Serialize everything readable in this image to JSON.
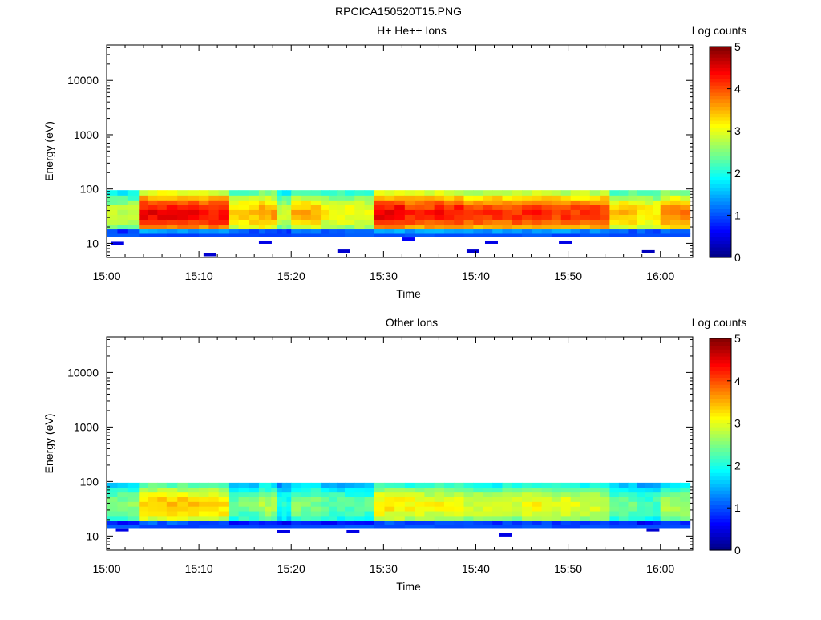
{
  "figure_title": "RPCICA150520T15.PNG",
  "chart_data": [
    {
      "type": "heatmap",
      "title": "H+ He++ Ions",
      "xlabel": "Time",
      "ylabel": "Energy (eV)",
      "xticks": [
        "15:00",
        "15:10",
        "15:20",
        "15:30",
        "15:40",
        "15:50",
        "16:00"
      ],
      "yticks": [
        "10",
        "100",
        "1000",
        "10000"
      ],
      "ylim": [
        5.5,
        45000
      ],
      "yscale": "log",
      "time_range": [
        "15:00",
        "16:03"
      ],
      "colorbar": {
        "label": "Log counts",
        "ticks": [
          "0",
          "1",
          "2",
          "3",
          "4",
          "5"
        ],
        "range": [
          0,
          5
        ],
        "colormap": "jet"
      },
      "energy_band_ev": [
        15,
        95
      ],
      "block_minutes": [
        0,
        3.5,
        6.5,
        10,
        13.2,
        16.5,
        18.5,
        20,
        23.2,
        25.8,
        29,
        32.3,
        35.5,
        38.7,
        41.8,
        45,
        48.2,
        51.3,
        54.5,
        57.5,
        60,
        63.2
      ],
      "block_peak_log_counts": [
        3.0,
        4.6,
        4.6,
        4.5,
        3.6,
        3.8,
        3.0,
        3.7,
        3.3,
        3.3,
        4.6,
        4.4,
        4.5,
        4.3,
        4.3,
        4.4,
        4.3,
        4.3,
        3.6,
        3.4,
        3.9
      ],
      "low_energy_counts": [
        {
          "t": 0.5,
          "ev": 10,
          "v": 0.5
        },
        {
          "t": 10.5,
          "ev": 6.2,
          "v": 0.4
        },
        {
          "t": 16.5,
          "ev": 10.5,
          "v": 0.5
        },
        {
          "t": 25,
          "ev": 7.2,
          "v": 0.4
        },
        {
          "t": 32,
          "ev": 12,
          "v": 0.6
        },
        {
          "t": 39,
          "ev": 7.2,
          "v": 0.4
        },
        {
          "t": 41,
          "ev": 10.5,
          "v": 0.5
        },
        {
          "t": 49,
          "ev": 10.5,
          "v": 0.5
        },
        {
          "t": 58,
          "ev": 7,
          "v": 0.3
        }
      ]
    },
    {
      "type": "heatmap",
      "title": "Other Ions",
      "xlabel": "Time",
      "ylabel": "Energy (eV)",
      "xticks": [
        "15:00",
        "15:10",
        "15:20",
        "15:30",
        "15:40",
        "15:50",
        "16:00"
      ],
      "yticks": [
        "10",
        "100",
        "1000",
        "10000"
      ],
      "ylim": [
        5.5,
        45000
      ],
      "yscale": "log",
      "time_range": [
        "15:00",
        "16:03"
      ],
      "colorbar": {
        "label": "Log counts",
        "ticks": [
          "0",
          "1",
          "2",
          "3",
          "4",
          "5"
        ],
        "range": [
          0,
          5
        ],
        "colormap": "jet"
      },
      "energy_band_ev": [
        16,
        95
      ],
      "block_minutes": [
        0,
        3.5,
        6.5,
        10,
        13.2,
        16.5,
        18.5,
        20,
        23.2,
        25.8,
        29,
        32.3,
        35.5,
        38.7,
        41.8,
        45,
        48.2,
        51.3,
        54.5,
        57.5,
        60,
        63.2
      ],
      "block_peak_log_counts": [
        2.7,
        3.6,
        3.6,
        3.5,
        2.6,
        2.9,
        2.2,
        2.7,
        2.5,
        2.5,
        3.4,
        3.3,
        3.3,
        3.1,
        3.1,
        3.3,
        3.2,
        3.1,
        2.6,
        2.4,
        2.9
      ],
      "low_energy_counts": [
        {
          "t": 1,
          "ev": 13,
          "v": 0.5
        },
        {
          "t": 18.5,
          "ev": 12,
          "v": 0.5
        },
        {
          "t": 26,
          "ev": 12,
          "v": 0.5
        },
        {
          "t": 42.5,
          "ev": 10.5,
          "v": 0.5
        },
        {
          "t": 58.5,
          "ev": 13,
          "v": 0.4
        }
      ]
    }
  ]
}
